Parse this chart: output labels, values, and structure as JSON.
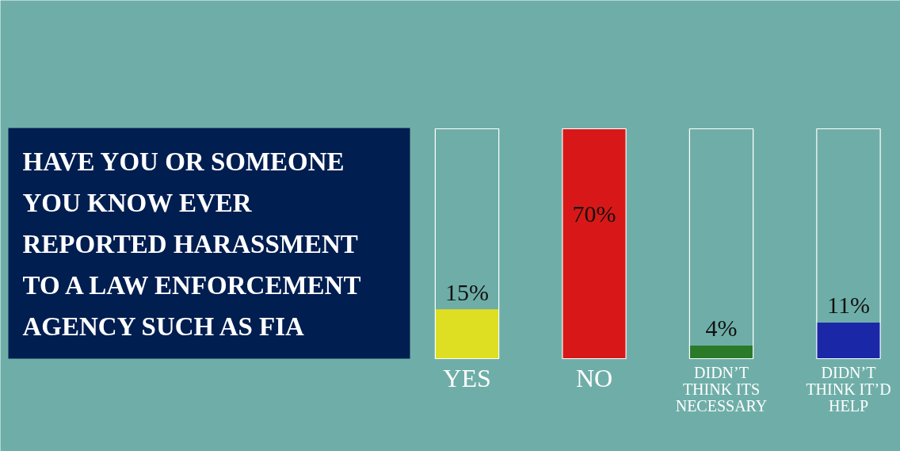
{
  "chart_data": {
    "type": "bar",
    "title": "HAVE YOU OR SOMEONE YOU KNOW EVER REPORTED HARASSMENT TO A LAW ENFORCEMENT AGENCY SUCH AS FIA",
    "categories": [
      "YES",
      "NO",
      "DIDN’T THINK ITS NECESSARY",
      "DIDN’T THINK IT’D HELP"
    ],
    "values": [
      15,
      70,
      4,
      11
    ],
    "value_labels": [
      "15%",
      "70%",
      "4%",
      "11%"
    ],
    "colors": [
      "#dede22",
      "#d81818",
      "#2a7a2a",
      "#1a28a8"
    ]
  }
}
